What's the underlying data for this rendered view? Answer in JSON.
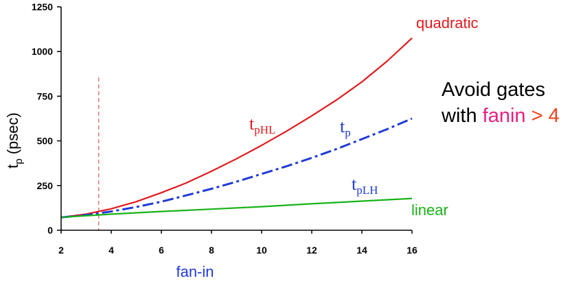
{
  "chart_data": {
    "type": "line",
    "ylabel_main": "t",
    "ylabel_sub": "p",
    "ylabel_unit": "(psec)",
    "xlabel": "fan-in",
    "xlim": [
      2,
      16
    ],
    "ylim": [
      0,
      1250
    ],
    "xticks": [
      2,
      4,
      6,
      8,
      10,
      12,
      14,
      16
    ],
    "yticks": [
      0,
      250,
      500,
      750,
      1000,
      1250
    ],
    "xtick_labels": [
      "2",
      "4",
      "6",
      "8",
      "10",
      "12",
      "14",
      "16"
    ],
    "ytick_labels": [
      "0",
      "250",
      "500",
      "750",
      "1000",
      "1250"
    ],
    "grid": false,
    "reference_line_x": 3.5,
    "series": [
      {
        "name_main": "t",
        "name_sub": "pHL",
        "color": "#e3191c",
        "style": "solid",
        "x": [
          2,
          3,
          4,
          5,
          6,
          7,
          8,
          9,
          10,
          11,
          12,
          13,
          14,
          15,
          16
        ],
        "y": [
          72,
          90,
          120,
          160,
          210,
          265,
          330,
          400,
          475,
          555,
          640,
          730,
          830,
          945,
          1075
        ]
      },
      {
        "name_main": "t",
        "name_sub": "p",
        "color": "#1f3ad6",
        "style": "dashdot",
        "x": [
          2,
          3,
          4,
          5,
          6,
          7,
          8,
          9,
          10,
          11,
          12,
          13,
          14,
          15,
          16
        ],
        "y": [
          72,
          85,
          105,
          130,
          160,
          195,
          232,
          272,
          315,
          358,
          405,
          455,
          510,
          565,
          625
        ]
      },
      {
        "name_main": "t",
        "name_sub": "pLH",
        "color": "#17b317",
        "style": "solid",
        "x": [
          2,
          4,
          6,
          8,
          10,
          12,
          14,
          16
        ],
        "y": [
          72,
          90,
          105,
          118,
          132,
          148,
          163,
          178
        ]
      }
    ],
    "annotations": {
      "quadratic": "quadratic",
      "linear": "linear"
    }
  },
  "note": {
    "line1": "Avoid gates",
    "line2_prefix": "with ",
    "line2_highlight": "fanin",
    "line2_suffix": " > 4"
  },
  "colors": {
    "axis": "#000000",
    "tphl": "#e3191c",
    "tp": "#1f3ad6",
    "tplh": "#17b317",
    "quadratic": "#e3191c",
    "linear": "#17b317",
    "fanin_label": "#1f3ad6",
    "fanin_word": "#e8207f",
    "gt4": "#f0421c",
    "refline": "#e07a7a"
  }
}
